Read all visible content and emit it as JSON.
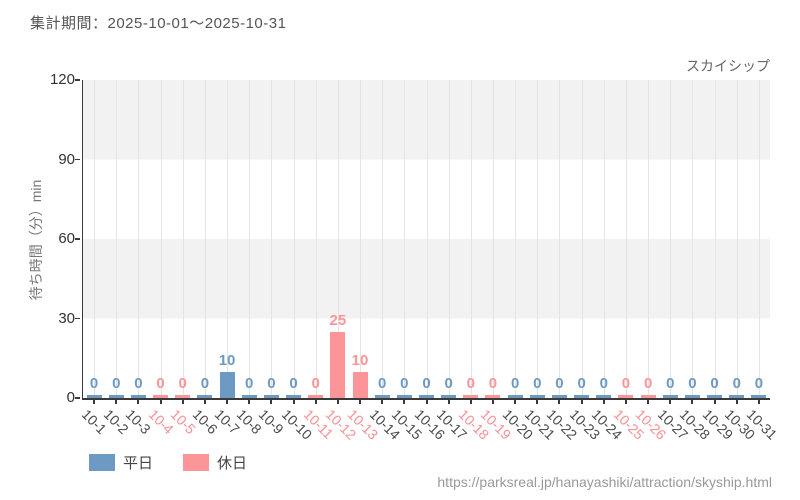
{
  "page": {
    "footer_url": "https://parksreal.jp/hanayashiki/attraction/skyship.html"
  },
  "chart_data": {
    "type": "bar",
    "title": "集計期間：2025-10-01～2025-10-31",
    "series_name": "スカイシップ",
    "ylabel": "待ち時間（分）min",
    "ylim": [
      0,
      120
    ],
    "yticks": [
      0,
      30,
      60,
      90,
      120
    ],
    "grid": true,
    "legend_position": "bottom-left",
    "categories": [
      "10-1",
      "10-2",
      "10-3",
      "10-4",
      "10-5",
      "10-6",
      "10-7",
      "10-8",
      "10-9",
      "10-10",
      "10-11",
      "10-12",
      "10-13",
      "10-14",
      "10-15",
      "10-16",
      "10-17",
      "10-18",
      "10-19",
      "10-20",
      "10-21",
      "10-22",
      "10-23",
      "10-24",
      "10-25",
      "10-26",
      "10-27",
      "10-28",
      "10-29",
      "10-30",
      "10-31"
    ],
    "values": [
      0,
      0,
      0,
      0,
      0,
      0,
      10,
      0,
      0,
      0,
      0,
      25,
      10,
      0,
      0,
      0,
      0,
      0,
      0,
      0,
      0,
      0,
      0,
      0,
      0,
      0,
      0,
      0,
      0,
      0,
      0
    ],
    "day_types": [
      "weekday",
      "weekday",
      "weekday",
      "holiday",
      "holiday",
      "weekday",
      "weekday",
      "weekday",
      "weekday",
      "weekday",
      "holiday",
      "holiday",
      "holiday",
      "weekday",
      "weekday",
      "weekday",
      "weekday",
      "holiday",
      "holiday",
      "weekday",
      "weekday",
      "weekday",
      "weekday",
      "weekday",
      "holiday",
      "holiday",
      "weekday",
      "weekday",
      "weekday",
      "weekday",
      "weekday"
    ],
    "legend": [
      {
        "label": "平日",
        "type": "weekday"
      },
      {
        "label": "休日",
        "type": "holiday"
      }
    ],
    "colors": {
      "weekday": "#6d9ac3",
      "holiday": "#fb9598",
      "weekday_text": "#4a4a4a",
      "holiday_text": "#f98f93",
      "axis": "#3a3a3a",
      "band": "#f2f2f2",
      "gridline": "#e4e4e4"
    }
  }
}
